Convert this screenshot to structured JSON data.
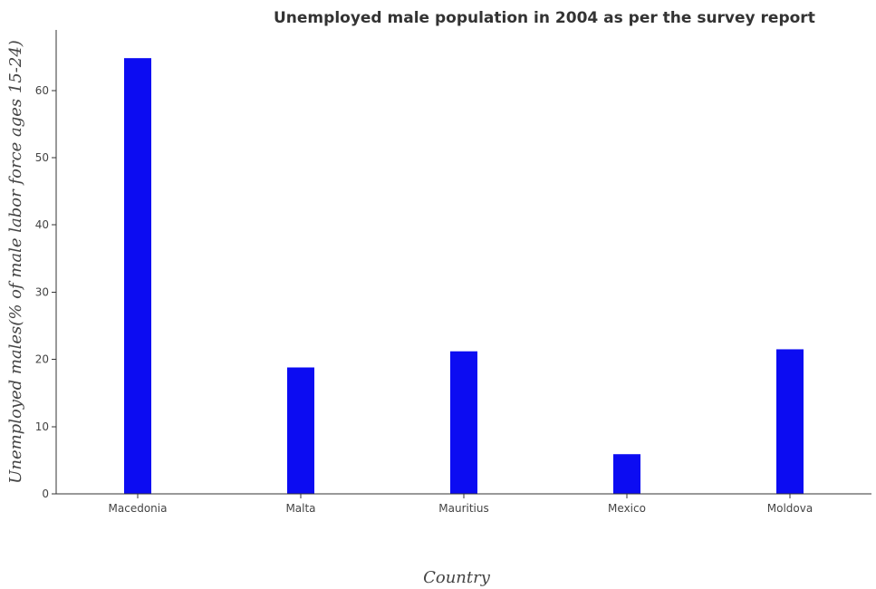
{
  "chart_data": {
    "type": "bar",
    "title": "Unemployed male population in 2004 as per the survey report",
    "xlabel": "Country",
    "ylabel": "Unemployed males(% of male labor force ages 15-24)",
    "categories": [
      "Macedonia",
      "Malta",
      "Mauritius",
      "Mexico",
      "Moldova"
    ],
    "values": [
      64.8,
      18.8,
      21.2,
      5.9,
      21.5
    ],
    "ylim": [
      0,
      69
    ],
    "yticks": [
      0,
      10,
      20,
      30,
      40,
      50,
      60
    ],
    "bar_color": "#0c0cf2",
    "grid": false,
    "legend": "none"
  }
}
